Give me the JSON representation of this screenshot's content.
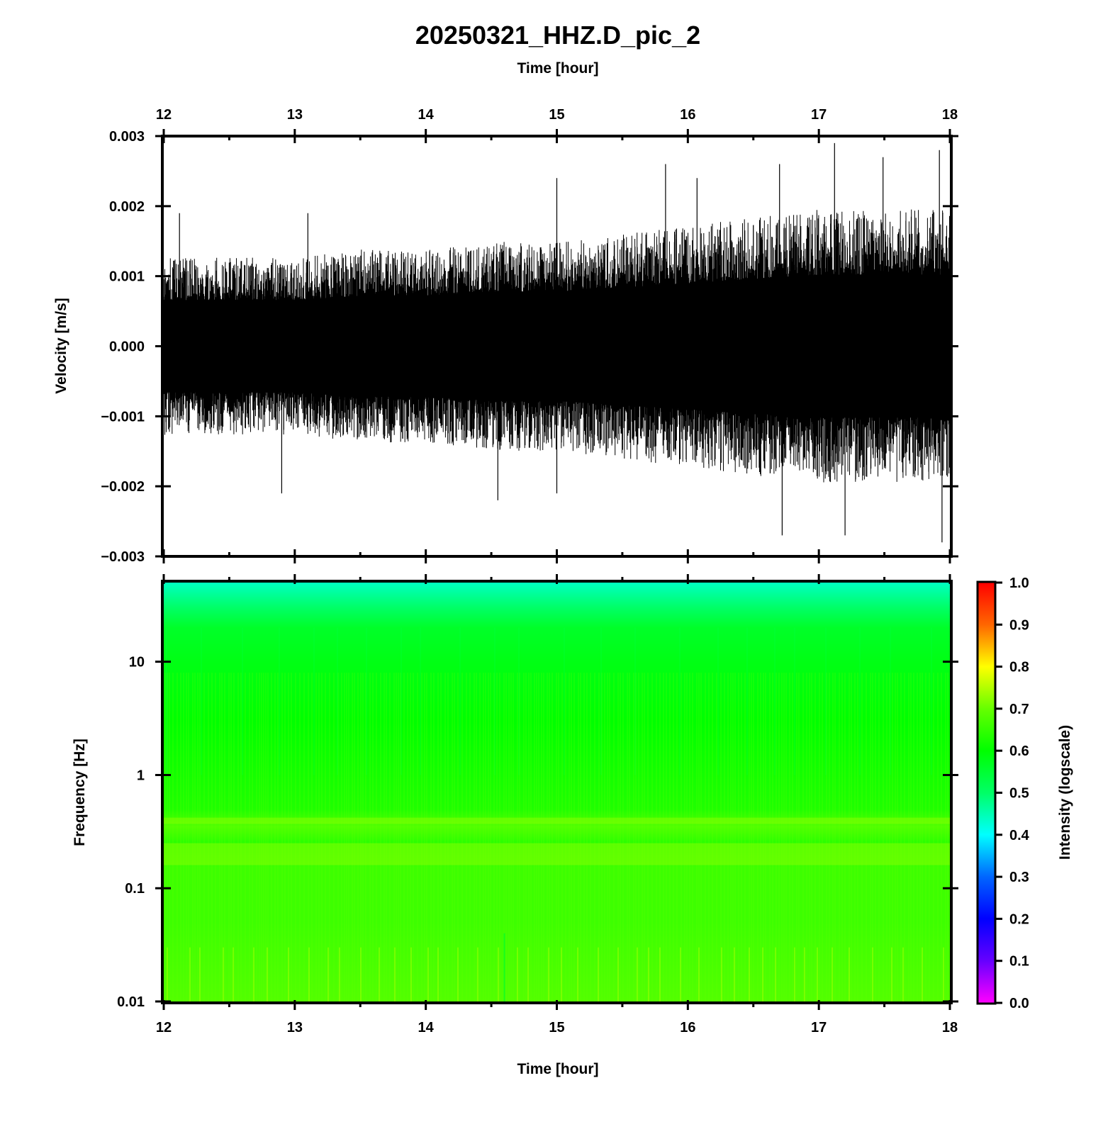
{
  "title": "20250321_HHZ.D_pic_2",
  "chart_data": [
    {
      "type": "line",
      "panel": "waveform",
      "title": "20250321_HHZ.D_pic_2",
      "xlabel": "Time [hour]",
      "ylabel": "Velocity [m/s]",
      "xlim": [
        12,
        18
      ],
      "ylim": [
        -0.003,
        0.003
      ],
      "x_ticks": [
        "12",
        "13",
        "14",
        "15",
        "16",
        "17",
        "18"
      ],
      "y_ticks": [
        "0.003",
        "0.002",
        "0.001",
        "0.000",
        "−0.001",
        "−0.002",
        "−0.003"
      ],
      "y_tick_values": [
        0.003,
        0.002,
        0.001,
        0.0,
        -0.001,
        -0.002,
        -0.003
      ],
      "series": [
        {
          "color": "#000000",
          "envelope": {
            "x": [
              12,
              12.5,
              13,
              13.5,
              14,
              14.5,
              15,
              15.5,
              16,
              16.5,
              17,
              17.5,
              18
            ],
            "typical_amplitude": [
              0.0011,
              0.0011,
              0.0011,
              0.0012,
              0.0012,
              0.0013,
              0.0013,
              0.0014,
              0.0015,
              0.0016,
              0.0017,
              0.0017,
              0.0017
            ]
          },
          "peaks": [
            {
              "x": 12.12,
              "y": 0.0019
            },
            {
              "x": 12.9,
              "y": -0.0021
            },
            {
              "x": 13.1,
              "y": 0.0019
            },
            {
              "x": 14.55,
              "y": -0.0022
            },
            {
              "x": 15.0,
              "y": 0.0024
            },
            {
              "x": 15.0,
              "y": -0.0021
            },
            {
              "x": 15.83,
              "y": 0.0026
            },
            {
              "x": 16.07,
              "y": 0.0024
            },
            {
              "x": 16.7,
              "y": 0.0026
            },
            {
              "x": 16.72,
              "y": -0.0027
            },
            {
              "x": 17.12,
              "y": 0.0029
            },
            {
              "x": 17.2,
              "y": -0.0027
            },
            {
              "x": 17.49,
              "y": 0.0027
            },
            {
              "x": 17.92,
              "y": 0.0028
            },
            {
              "x": 17.94,
              "y": -0.0028
            }
          ]
        }
      ]
    },
    {
      "type": "heatmap",
      "panel": "spectrogram",
      "xlabel": "Time [hour]",
      "ylabel": "Frequency [Hz]",
      "xlim": [
        12,
        18
      ],
      "ylim": [
        0.01,
        50
      ],
      "yscale": "log",
      "x_ticks": [
        "12",
        "13",
        "14",
        "15",
        "16",
        "17",
        "18"
      ],
      "y_ticks": [
        "10",
        "1",
        "0.1",
        "0.01"
      ],
      "y_tick_values": [
        10,
        1,
        0.1,
        0.01
      ],
      "colorbar": {
        "label": "Intensity (logscale)",
        "range": [
          0,
          1
        ],
        "ticks": [
          "1.0",
          "0.9",
          "0.8",
          "0.7",
          "0.6",
          "0.5",
          "0.4",
          "0.3",
          "0.2",
          "0.1",
          "0.0"
        ],
        "colormap": [
          "#ff00ff",
          "#6600ff",
          "#0000ff",
          "#0066ff",
          "#00ffff",
          "#00ff66",
          "#00ff00",
          "#66ff00",
          "#ffff00",
          "#ff6600",
          "#ff0000"
        ]
      },
      "intensity_profile": {
        "frequency": [
          50,
          30,
          20,
          10,
          3,
          1,
          0.5,
          0.35,
          0.25,
          0.15,
          0.05,
          0.01
        ],
        "intensity": [
          0.44,
          0.5,
          0.56,
          0.58,
          0.6,
          0.62,
          0.63,
          0.68,
          0.64,
          0.66,
          0.66,
          0.68
        ]
      }
    }
  ]
}
